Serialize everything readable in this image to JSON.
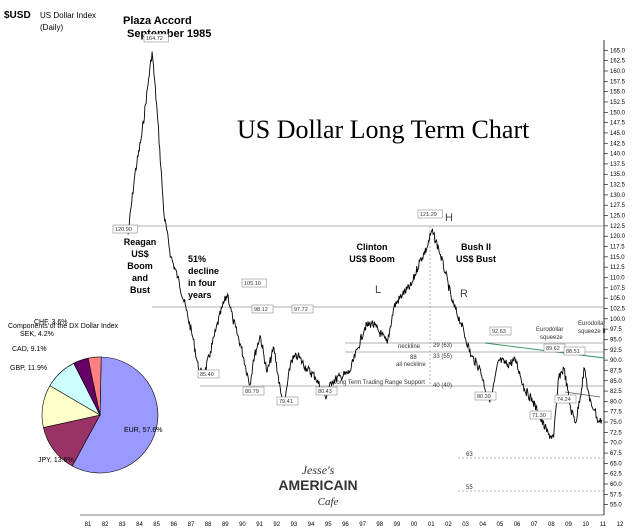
{
  "header": {
    "symbol": "$USD",
    "name": "US Dollar Index",
    "freq": "(Daily)",
    "plaza_line1": "Plaza Accord",
    "plaza_line2": "September 1985"
  },
  "brand": {
    "line1": "Jesse's",
    "line2": "AMERICAIN",
    "line3": "Cafe"
  },
  "colors": {
    "price": "#000000",
    "guide": "#999999",
    "trend": "#2e8b57",
    "pie_eur": "#9999ff",
    "pie_jpy": "#993366",
    "pie_gbp": "#ffffcc",
    "pie_cad": "#ccffff",
    "pie_sek": "#660066",
    "pie_chf": "#ff8080"
  },
  "chart_data": [
    {
      "type": "line",
      "title": "US Dollar Long Term Chart",
      "ylim": [
        52.5,
        167.5
      ],
      "yticks": [
        55.0,
        57.5,
        60.0,
        62.5,
        65.0,
        67.5,
        70.0,
        72.5,
        75.0,
        77.5,
        80.0,
        82.5,
        85.0,
        87.5,
        90.0,
        92.5,
        95.0,
        97.5,
        100.0,
        102.5,
        105.0,
        107.5,
        110.0,
        112.5,
        115.0,
        117.5,
        120.0,
        122.5,
        125.0,
        127.5,
        130.0,
        132.5,
        135.0,
        137.5,
        140.0,
        142.5,
        145.0,
        147.5,
        150.0,
        152.5,
        155.0,
        157.5,
        160.0,
        162.5,
        165.0
      ],
      "xlim": [
        1981,
        2012
      ],
      "xtick_labels": [
        "81",
        "82",
        "83",
        "84",
        "85",
        "86",
        "87",
        "88",
        "89",
        "90",
        "91",
        "92",
        "93",
        "94",
        "95",
        "96",
        "97",
        "98",
        "99",
        "00",
        "01",
        "02",
        "03",
        "04",
        "05",
        "06",
        "07",
        "08",
        "09",
        "10",
        "11",
        "12"
      ],
      "series": [
        {
          "x": [
            1983.8,
            1984.2,
            1984.6,
            1985.0,
            1985.2,
            1985.5,
            1985.9,
            1986.3,
            1986.7,
            1987.2,
            1987.6,
            1987.9,
            1988.2,
            1988.6,
            1988.9,
            1989.3,
            1989.6,
            1989.9,
            1990.4,
            1990.9,
            1991.1,
            1991.5,
            1991.9,
            1992.3,
            1992.7,
            1992.9,
            1993.3,
            1993.7,
            1994.2,
            1994.7,
            1995.3,
            1995.7,
            1996.2,
            1996.7,
            1997.2,
            1997.6,
            1998.0,
            1998.6,
            1998.9,
            1999.3,
            1999.8,
            2000.3,
            2000.8,
            2001.2,
            2001.5,
            2001.9,
            2002.3,
            2002.7,
            2003.2,
            2003.8,
            2004.3,
            2004.7,
            2004.95,
            2005.4,
            2005.9,
            2006.4,
            2006.9,
            2007.4,
            2007.8,
            2008.3,
            2008.6,
            2008.9,
            2009.2,
            2009.6,
            2009.9,
            2010.4,
            2010.7,
            2011.0,
            2011.2,
            2011.4
          ],
          "y": [
            120.4,
            135.0,
            144.5,
            158.0,
            164.7,
            150.0,
            125.0,
            115.0,
            110.0,
            102.0,
            95.0,
            88.0,
            86.0,
            92.0,
            97.0,
            103.0,
            106.0,
            100.0,
            93.0,
            84.0,
            90.0,
            96.0,
            87.0,
            93.0,
            82.0,
            79.0,
            90.0,
            91.0,
            88.0,
            86.0,
            81.0,
            85.0,
            86.0,
            87.0,
            93.0,
            98.0,
            99.0,
            96.0,
            94.0,
            103.0,
            106.0,
            108.0,
            114.0,
            117.0,
            121.3,
            117.0,
            111.0,
            104.0,
            99.0,
            91.0,
            88.0,
            82.0,
            80.4,
            90.0,
            89.0,
            90.0,
            83.0,
            80.0,
            76.0,
            72.0,
            71.3,
            86.0,
            88.0,
            78.0,
            75.0,
            88.0,
            80.0,
            78.0,
            75.0,
            75.5
          ]
        }
      ]
    },
    {
      "type": "pie",
      "title": "Components of the DX Dollar Index",
      "labels": [
        "EUR, 57.6%",
        "JPY, 13.6%",
        "GBP, 11.9%",
        "CAD, 9.1%",
        "SEK, 4.2%",
        "CHF, 3.6%"
      ],
      "values": [
        57.6,
        13.6,
        11.9,
        9.1,
        4.2,
        3.6
      ]
    }
  ],
  "annotations": {
    "reagan": [
      "Reagan",
      "US$",
      "Boom",
      "and",
      "Bust"
    ],
    "decline": [
      "51%",
      "decline",
      "in four",
      "years"
    ],
    "clinton": [
      "Clinton",
      "US$ Boom"
    ],
    "bush": [
      "Bush II",
      "US$ Bust"
    ],
    "pattern_L": "L",
    "pattern_H": "H",
    "pattern_R": "R",
    "neckline": "neckline",
    "neck_88": "88",
    "neck_all": "all neckline",
    "v29": "29 (63)",
    "v33": "33 (55)",
    "v40": "40 (40)",
    "support": "Long Term Trading Range Support",
    "euro1": [
      "Eurodollar",
      "squeeze"
    ],
    "euro2": [
      "Eurodollar",
      "squeeze II"
    ],
    "target63": "63",
    "target55": "55",
    "price_labels": {
      "p164": "164.72",
      "p120": "120.90",
      "p105": "105.10",
      "p98a": "98.12",
      "p97": "97.72",
      "p85": "85.40",
      "p80a": "80.79",
      "p79": "79.41",
      "p80b": "80.43",
      "p121": "121.29",
      "p80c": "80.39",
      "p92": "92.63",
      "p89": "89.62",
      "p88": "88.51",
      "p74": "74.24",
      "p71": "71.30"
    }
  }
}
